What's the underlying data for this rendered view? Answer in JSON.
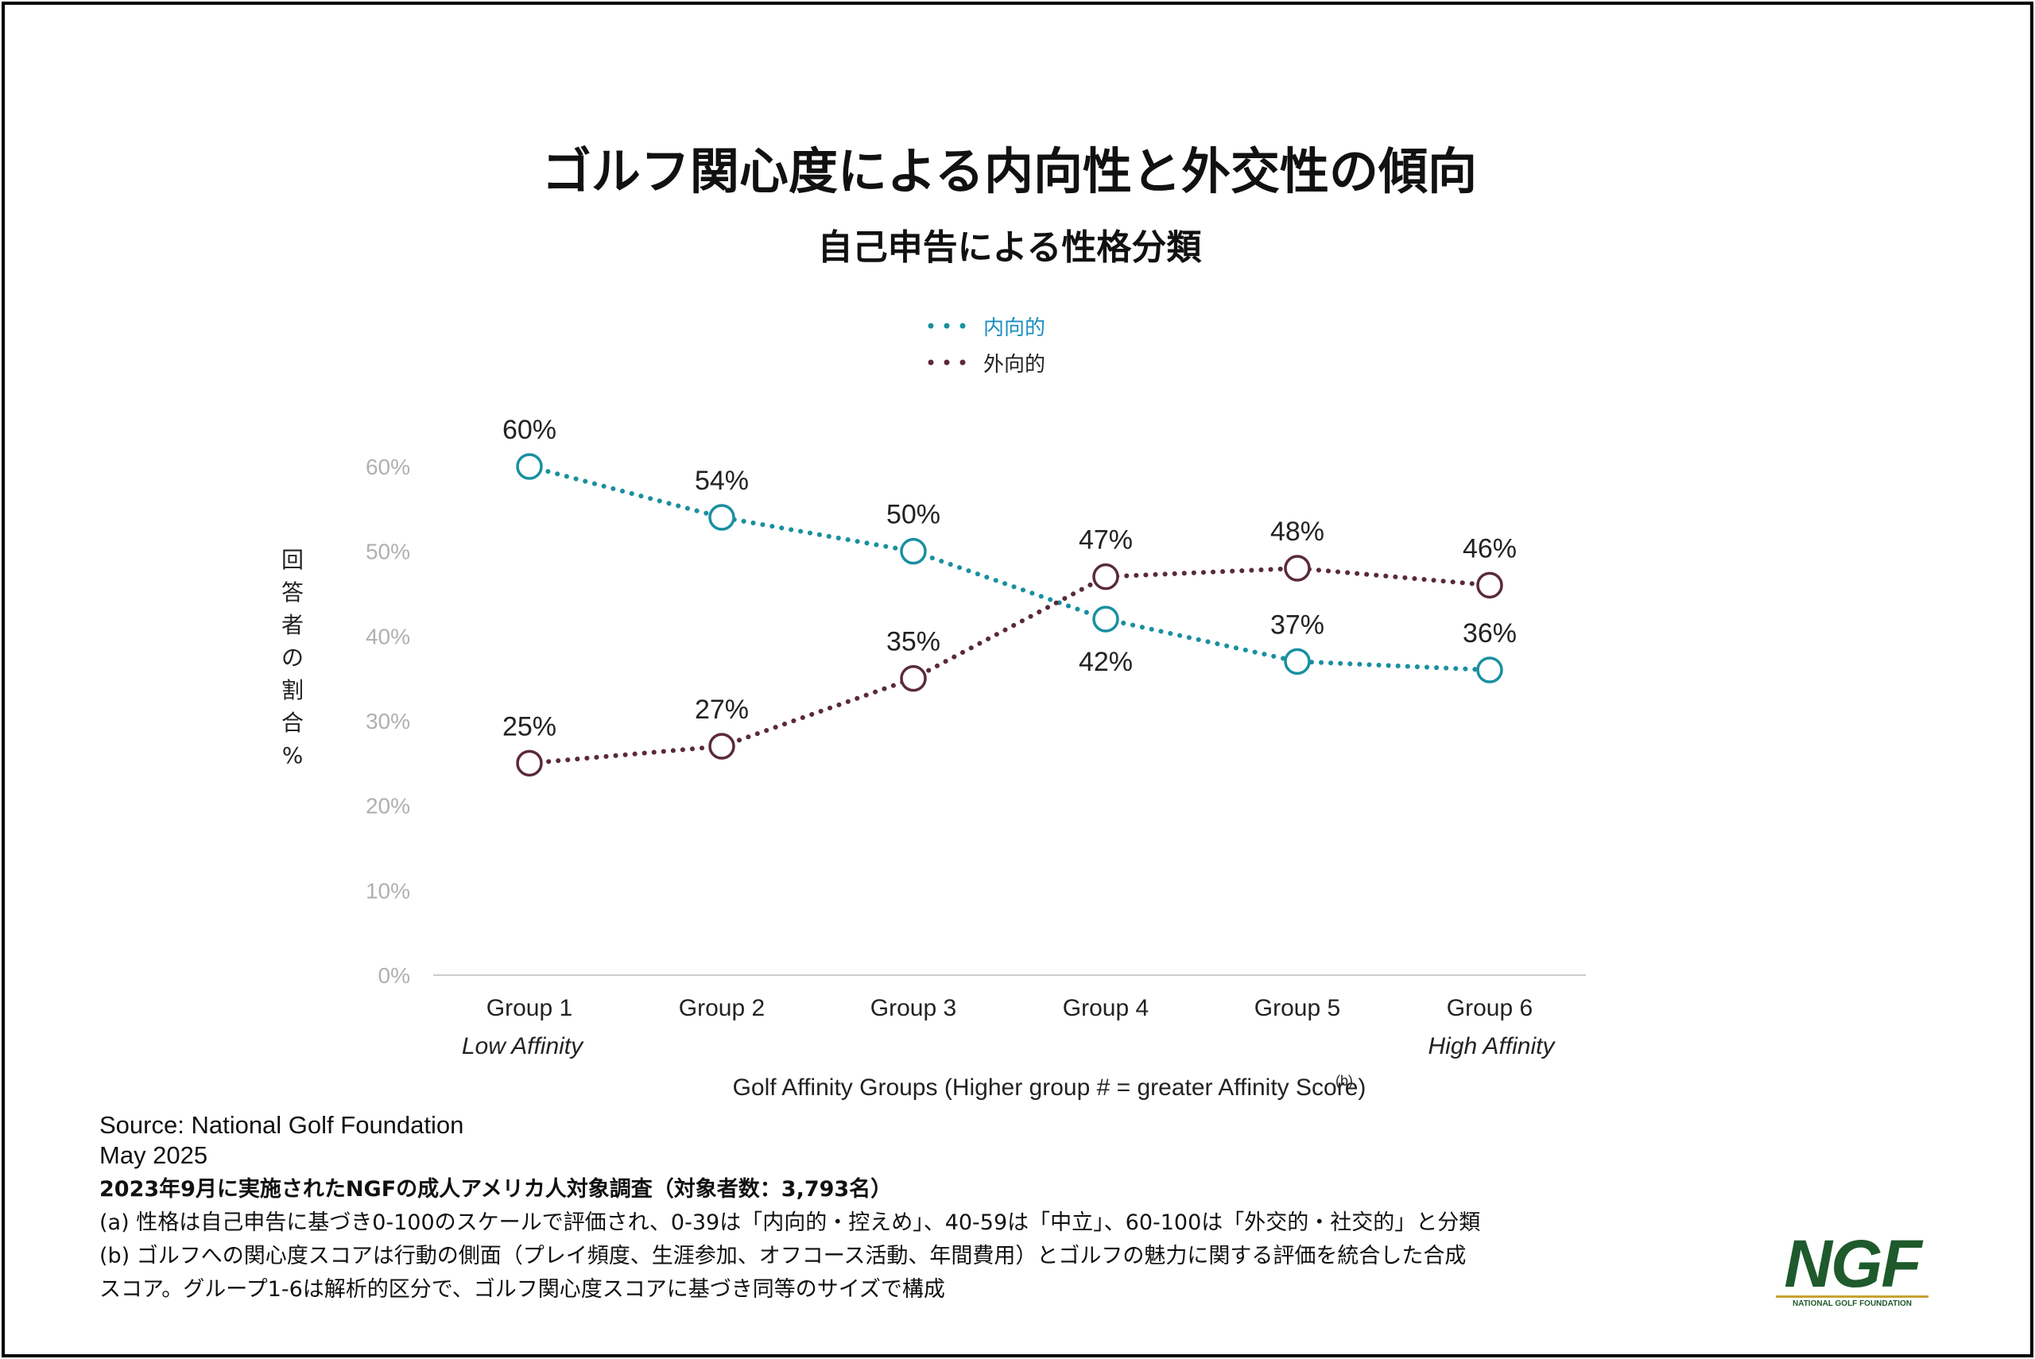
{
  "title": "ゴルフ関心度による内向性と外交性の傾向",
  "subtitle": "自己申告による性格分類",
  "legend": {
    "introvert": "内向的",
    "extrovert": "外向的"
  },
  "colors": {
    "introvert": "#1a8fa0",
    "extrovert": "#5a2a3a",
    "introvert_legend_text": "#1a8fc0",
    "axis_tick": "#b0b0b0",
    "baseline": "#cccccc",
    "logo": "#1e5a2c",
    "logo_accent": "#c8a232"
  },
  "chart_data": {
    "type": "line",
    "categories": [
      "Group 1",
      "Group 2",
      "Group 3",
      "Group 4",
      "Group 5",
      "Group 6"
    ],
    "category_sublabels": [
      "Low Affinity",
      "",
      "",
      "",
      "",
      "High Affinity"
    ],
    "series": [
      {
        "name": "内向的",
        "values": [
          60,
          54,
          50,
          42,
          37,
          36
        ],
        "labels": [
          "60%",
          "54%",
          "50%",
          "42%",
          "37%",
          "36%"
        ],
        "label_pos": [
          "above",
          "above",
          "above",
          "below",
          "above",
          "above"
        ]
      },
      {
        "name": "外向的",
        "values": [
          25,
          27,
          35,
          47,
          48,
          46
        ],
        "labels": [
          "25%",
          "27%",
          "35%",
          "47%",
          "48%",
          "46%"
        ],
        "label_pos": [
          "above",
          "above",
          "above",
          "above",
          "above",
          "above"
        ]
      }
    ],
    "ylim": [
      0,
      60
    ],
    "yticks": [
      0,
      10,
      20,
      30,
      40,
      50,
      60
    ],
    "ytick_labels": [
      "0%",
      "10%",
      "20%",
      "30%",
      "40%",
      "50%",
      "60%"
    ],
    "ylabel": "回答者の割合%",
    "xlabel": "Golf Affinity Groups (Higher group # = greater Affinity Score)",
    "xlabel_sup": "(b)",
    "grid": false,
    "legend_position": "top-center",
    "line_style": "dotted",
    "markers": "hollow-circle"
  },
  "footer": {
    "source": "Source: National Golf Foundation",
    "date": "May 2025",
    "survey": "2023年9月に実施されたNGFの成人アメリカ人対象調査（対象者数：3,793名）",
    "note_a": "(a) 性格は自己申告に基づき0-100のスケールで評価され、0-39は「内向的・控えめ」、40-59は「中立」、60-100は「外交的・社交的」と分類",
    "note_b_line1": "(b) ゴルフへの関心度スコアは行動の側面（プレイ頻度、生涯参加、オフコース活動、年間費用）とゴルフの魅力に関する評価を統合した合成",
    "note_b_line2": "スコア。グループ1-6は解析的区分で、ゴルフ関心度スコアに基づき同等のサイズで構成"
  },
  "logo": {
    "text": "NGF",
    "subtext": "NATIONAL GOLF FOUNDATION"
  }
}
